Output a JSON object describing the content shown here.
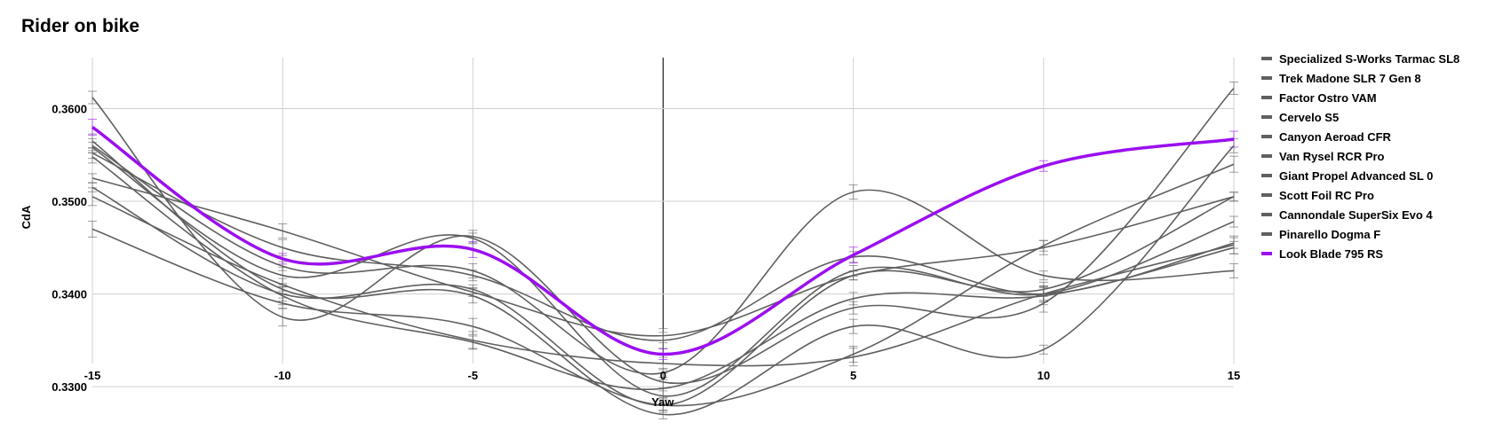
{
  "chart_data": {
    "type": "line",
    "title": "Rider on bike",
    "xlabel": "Yaw",
    "ylabel": "CdA",
    "xlim": [
      -15,
      15
    ],
    "ylim": [
      0.3325,
      0.3655
    ],
    "x": [
      -15,
      -10,
      -5,
      0,
      5,
      10,
      15
    ],
    "xticks": [
      "-15",
      "-10",
      "-5",
      "0",
      "5",
      "10",
      "15"
    ],
    "yticks": [
      "0.3300",
      "0.3400",
      "0.3500",
      "0.3600"
    ],
    "grid": true,
    "legend_position": "right",
    "series": [
      {
        "name": "Specialized S-Works Tarmac SL8",
        "color": "#606060",
        "values": [
          0.3515,
          0.34,
          0.3405,
          0.328,
          0.342,
          0.3405,
          0.3505
        ]
      },
      {
        "name": "Trek Madone SLR 7 Gen 8",
        "color": "#606060",
        "values": [
          0.3558,
          0.342,
          0.346,
          0.329,
          0.3425,
          0.34,
          0.3478
        ]
      },
      {
        "name": "Factor Ostro VAM",
        "color": "#606060",
        "values": [
          0.3612,
          0.3375,
          0.3462,
          0.3305,
          0.3385,
          0.339,
          0.3622
        ]
      },
      {
        "name": "Cervelo S5",
        "color": "#606060",
        "values": [
          0.3565,
          0.3405,
          0.3398,
          0.327,
          0.3365,
          0.334,
          0.356
        ]
      },
      {
        "name": "Canyon Aeroad CFR",
        "color": "#606060",
        "values": [
          0.347,
          0.339,
          0.3365,
          0.328,
          0.3335,
          0.3452,
          0.354
        ]
      },
      {
        "name": "Van Rysel RCR Pro",
        "color": "#606060",
        "values": [
          0.3505,
          0.341,
          0.335,
          0.3325,
          0.3332,
          0.34,
          0.3453
        ]
      },
      {
        "name": "Giant Propel Advanced SL 0",
        "color": "#606060",
        "values": [
          0.3525,
          0.3468,
          0.3402,
          0.3355,
          0.342,
          0.345,
          0.3505
        ]
      },
      {
        "name": "Scott Foil RC Pro",
        "color": "#606060",
        "values": [
          0.3552,
          0.345,
          0.342,
          0.335,
          0.344,
          0.34,
          0.3455
        ]
      },
      {
        "name": "Cannondale SuperSix Evo 4",
        "color": "#606060",
        "values": [
          0.3548,
          0.3398,
          0.3348,
          0.3298,
          0.3395,
          0.3398,
          0.345
        ]
      },
      {
        "name": "Pinarello Dogma F",
        "color": "#606060",
        "values": [
          0.356,
          0.343,
          0.3425,
          0.3315,
          0.351,
          0.342,
          0.3425
        ]
      },
      {
        "name": "Look Blade 795 RS",
        "color": "#9b0ff0",
        "values": [
          0.358,
          0.3438,
          0.3448,
          0.3335,
          0.3442,
          0.3538,
          0.3567
        ]
      }
    ]
  }
}
